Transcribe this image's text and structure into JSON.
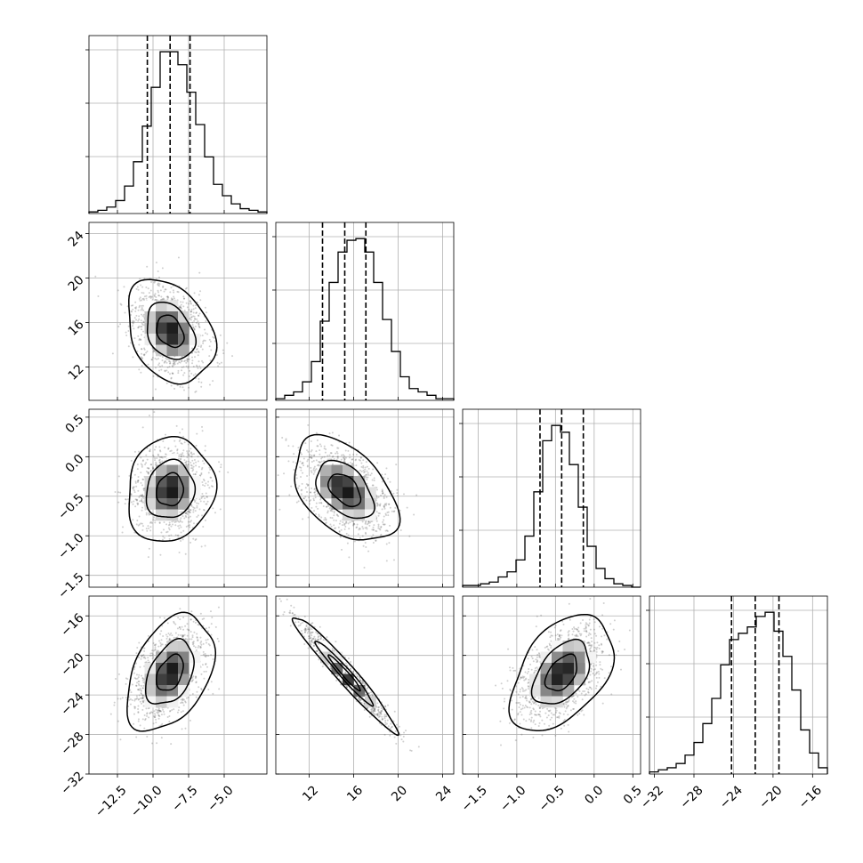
{
  "chart_data": {
    "type": "corner",
    "description_free": true,
    "grid": true,
    "parameters": [
      {
        "xlim": [
          -14.5,
          -2.0
        ],
        "ylim": null,
        "ticks": [
          -12.5,
          -10.0,
          -7.5,
          -5.0
        ],
        "tick_labels": [
          "−12.5",
          "−10.0",
          "−7.5",
          "−5.0"
        ],
        "mean": -8.8,
        "std": 1.25,
        "quantiles": [
          -10.4,
          -8.8,
          -7.4
        ],
        "histogram_counts": [
          1,
          2,
          4,
          8,
          17,
          32,
          54,
          78,
          100,
          100,
          92,
          75,
          55,
          35,
          18,
          11,
          6,
          3,
          2,
          1
        ]
      },
      {
        "xlim": [
          9.0,
          25.0
        ],
        "ylim": [
          9.0,
          25.0
        ],
        "ticks": [
          12,
          16,
          20,
          24
        ],
        "tick_labels": [
          "12",
          "16",
          "20",
          "24"
        ],
        "mean": 15.2,
        "std": 1.9,
        "quantiles": [
          13.2,
          15.2,
          17.1
        ],
        "histogram_counts": [
          1,
          3,
          5,
          11,
          23,
          47,
          70,
          88,
          95,
          96,
          88,
          70,
          48,
          29,
          14,
          7,
          5,
          3,
          1,
          1
        ]
      },
      {
        "xlim": [
          -1.7,
          0.6
        ],
        "ylim": [
          -1.65,
          0.6
        ],
        "ticks": [
          -1.5,
          -1.0,
          -0.5,
          0.0,
          0.5
        ],
        "tick_labels": [
          "−1.5",
          "−1.0",
          "−0.5",
          "0.0",
          "0.5"
        ],
        "mean": -0.42,
        "std": 0.27,
        "quantiles": [
          -0.7,
          -0.42,
          -0.14
        ],
        "histogram_counts": [
          1,
          1,
          2,
          3,
          6,
          9,
          16,
          30,
          56,
          86,
          95,
          91,
          72,
          47,
          24,
          11,
          5,
          2,
          1,
          0
        ]
      },
      {
        "xlim": [
          -32.5,
          -14.5
        ],
        "ylim": [
          -32.0,
          -14.0
        ],
        "ticks": [
          -32,
          -28,
          -24,
          -20,
          -16
        ],
        "tick_labels": [
          "−32",
          "−28",
          "−24",
          "−20",
          "−16"
        ],
        "mean": -21.8,
        "std": 2.4,
        "quantiles": [
          -24.2,
          -21.8,
          -19.4
        ],
        "histogram_counts": [
          1,
          2,
          3,
          5,
          9,
          15,
          24,
          36,
          52,
          64,
          67,
          70,
          75,
          77,
          68,
          56,
          40,
          21,
          10,
          3
        ]
      }
    ],
    "correlations": {
      "1-0": -0.3,
      "2-0": 0.1,
      "2-1": -0.45,
      "3-0": 0.4,
      "3-1": -0.97,
      "3-2": 0.45
    },
    "contour_levels": [
      0.95,
      0.6,
      0.25
    ]
  }
}
